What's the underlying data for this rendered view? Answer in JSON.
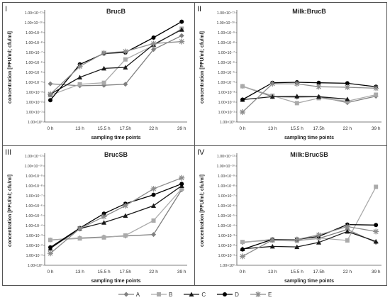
{
  "legend": [
    {
      "name": "A",
      "color": "#808080",
      "marker": "diamond"
    },
    {
      "name": "B",
      "color": "#aaaaaa",
      "marker": "square"
    },
    {
      "name": "C",
      "color": "#1a1a1a",
      "marker": "triangle"
    },
    {
      "name": "D",
      "color": "#000000",
      "marker": "circle"
    },
    {
      "name": "E",
      "color": "#8c8c8c",
      "marker": "star"
    }
  ],
  "chart_data": [
    {
      "type": "line",
      "panel_label": "I",
      "title": "BrucB",
      "xlabel": "sampling time points",
      "ylabel": "concentration [PFU/ml; cfu/ml]",
      "categories": [
        "0 h",
        "13 h",
        "15.5 h",
        "17.5h",
        "22 h",
        "39 h"
      ],
      "y_tick_labels": [
        "1.00×10⁰",
        "1.00×10⁻¹",
        "1.00×10⁻²",
        "1.00×10⁻³",
        "1.00×10⁻⁴",
        "1.00×10⁻⁵",
        "1.00×10⁻⁶",
        "1.00×10⁻⁷",
        "1.00×10⁻⁸",
        "1.00×10⁻⁹",
        "1.00×10⁻¹⁰",
        "1.00×10⁻¹¹"
      ],
      "ylim": [
        0,
        11
      ],
      "series": [
        {
          "name": "A",
          "values": [
            3.85,
            3.65,
            3.7,
            3.8,
            7.3,
            8.7
          ]
        },
        {
          "name": "B",
          "values": [
            2.7,
            3.8,
            3.95,
            6.3,
            7.7,
            9.4
          ]
        },
        {
          "name": "C",
          "values": [
            2.8,
            4.5,
            5.4,
            5.5,
            7.8,
            9.3
          ]
        },
        {
          "name": "D",
          "values": [
            2.2,
            5.8,
            6.9,
            7.0,
            8.5,
            10.1
          ]
        },
        {
          "name": "E",
          "values": [
            2.8,
            5.6,
            6.95,
            7.1,
            7.9,
            8.1
          ]
        }
      ]
    },
    {
      "type": "line",
      "panel_label": "II",
      "title": "Milk:BrucB",
      "xlabel": "sampling time points",
      "ylabel": "concentration [PFU/ml; cfu/ml]",
      "categories": [
        "0 h",
        "13 h",
        "15.5 h",
        "17.5h",
        "22 h",
        "39 h"
      ],
      "y_tick_labels": [
        "1.00×10⁰",
        "1.00×10⁻¹",
        "1.00×10⁻²",
        "1.00×10⁻³",
        "1.00×10⁻⁴",
        "1.00×10⁻⁵",
        "1.00×10⁻⁶",
        "1.00×10⁻⁷",
        "1.00×10⁻⁸",
        "1.00×10⁻⁹",
        "1.00×10⁻¹⁰",
        "1.00×10⁻¹¹"
      ],
      "ylim": [
        0,
        11
      ],
      "series": [
        {
          "name": "A",
          "values": [
            3.6,
            2.55,
            2.5,
            2.55,
            1.95,
            2.6
          ]
        },
        {
          "name": "B",
          "values": [
            3.6,
            2.65,
            1.9,
            2.4,
            2.1,
            2.75
          ]
        },
        {
          "name": "C",
          "values": [
            2.25,
            2.55,
            2.6,
            2.55,
            2.3,
            null
          ]
        },
        {
          "name": "D",
          "values": [
            2.25,
            3.95,
            4.0,
            3.95,
            3.9,
            3.55
          ]
        },
        {
          "name": "E",
          "values": [
            1.0,
            3.85,
            3.85,
            3.55,
            3.5,
            3.4
          ]
        }
      ]
    },
    {
      "type": "line",
      "panel_label": "III",
      "title": "BrucSB",
      "xlabel": "sampling time points",
      "ylabel": "concentration [PFU/ml; cfu/ml]",
      "categories": [
        "0 h",
        "13 h",
        "15.5 h",
        "17.5h",
        "22 h",
        "39 h"
      ],
      "y_tick_labels": [
        "1.00×10⁰",
        "1.00×10⁻¹",
        "1.00×10⁻²",
        "1.00×10⁻³",
        "1.00×10⁻⁴",
        "1.00×10⁻⁵",
        "1.00×10⁻⁶",
        "1.00×10⁻⁷",
        "1.00×10⁻⁸",
        "1.00×10⁻⁹",
        "1.00×10⁻¹⁰",
        "1.00×10⁻¹¹"
      ],
      "ylim": [
        0,
        11
      ],
      "series": [
        {
          "name": "A",
          "values": [
            2.55,
            2.75,
            2.85,
            2.95,
            3.1,
            7.6
          ]
        },
        {
          "name": "B",
          "values": [
            2.55,
            2.7,
            2.8,
            3.0,
            4.5,
            7.7
          ]
        },
        {
          "name": "C",
          "values": [
            1.7,
            3.7,
            4.3,
            5.0,
            6.0,
            8.0
          ]
        },
        {
          "name": "D",
          "values": [
            1.8,
            3.75,
            5.2,
            6.2,
            7.1,
            8.2
          ]
        },
        {
          "name": "E",
          "values": [
            1.2,
            3.7,
            4.9,
            6.0,
            7.7,
            8.8
          ]
        }
      ]
    },
    {
      "type": "line",
      "panel_label": "IV",
      "title": "Milk:BrucSB",
      "xlabel": "sampling time points",
      "ylabel": "concentration [PFU/ml; cfu/ml]",
      "categories": [
        "0 h",
        "13 h",
        "15.5 h",
        "17.5h",
        "22 h",
        "39 h"
      ],
      "y_tick_labels": [
        "1.00×10⁰",
        "1.00×10⁻¹",
        "1.00×10⁻²",
        "1.00×10⁻³",
        "1.00×10⁻⁴",
        "1.00×10⁻⁵",
        "1.00×10⁻⁶",
        "1.00×10⁻⁷",
        "1.00×10⁻⁸",
        "1.00×10⁻⁹",
        "1.00×10⁻¹⁰",
        "1.00×10⁻¹¹"
      ],
      "ylim": [
        0,
        11
      ],
      "series": [
        {
          "name": "A",
          "values": [
            2.3,
            2.6,
            2.5,
            2.7,
            3.6,
            2.3
          ]
        },
        {
          "name": "B",
          "values": [
            2.35,
            2.5,
            2.45,
            2.75,
            2.5,
            7.9
          ]
        },
        {
          "name": "C",
          "values": [
            1.65,
            1.9,
            1.85,
            2.3,
            3.4,
            2.4
          ]
        },
        {
          "name": "D",
          "values": [
            1.6,
            2.6,
            2.6,
            2.9,
            4.1,
            4.05
          ]
        },
        {
          "name": "E",
          "values": [
            0.9,
            2.55,
            2.6,
            3.05,
            3.9,
            3.4
          ]
        }
      ]
    }
  ]
}
